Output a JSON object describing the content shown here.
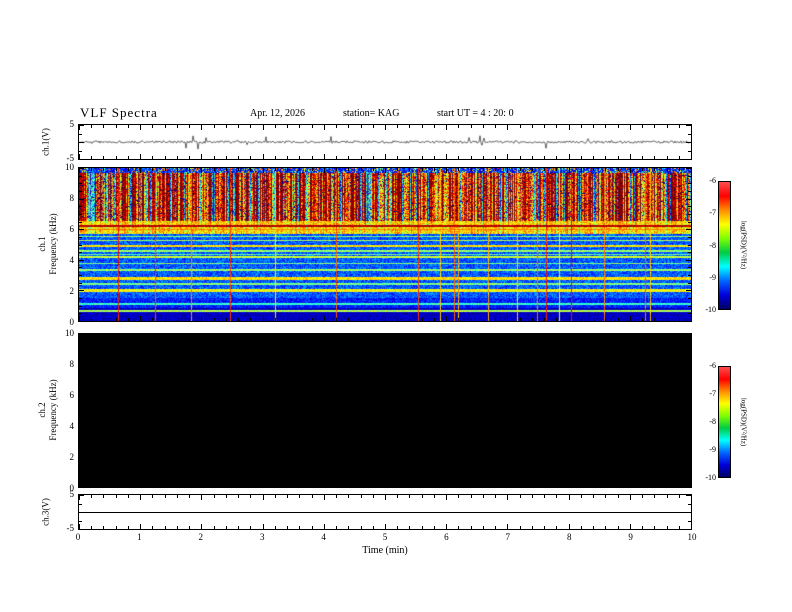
{
  "header": {
    "title": "VLF Spectra",
    "date": "Apr. 12, 2026",
    "station": "station= KAG",
    "start_ut": "start UT =  4 : 20: 0"
  },
  "axes": {
    "time_label": "Time (min)",
    "time_ticks": [
      "0",
      "1",
      "2",
      "3",
      "4",
      "5",
      "6",
      "7",
      "8",
      "9",
      "10"
    ],
    "freq_ticks": [
      "10",
      "8",
      "6",
      "4",
      "2",
      "0"
    ],
    "volt_top": "5",
    "volt_bottom": "-5"
  },
  "panels": {
    "ch1_wave_label": "ch.1(V)",
    "ch1_spec_ch": "ch.1",
    "ch1_spec_freq": "Frequency (kHz)",
    "ch2_spec_ch": "ch.2",
    "ch2_spec_freq": "Frequency (kHz)",
    "ch3_wave_label": "ch.3(V)"
  },
  "colorbar": {
    "label": "log(PSD)(V²/Hz)",
    "ticks": [
      "-6",
      "-7",
      "-8",
      "-9",
      "-10"
    ],
    "gradient": [
      "#ff4d4d",
      "#ff0000",
      "#ff8c00",
      "#ffff00",
      "#7fff00",
      "#00cc44",
      "#00ffff",
      "#0066ff",
      "#0000dd",
      "#000066"
    ]
  },
  "chart_data": [
    {
      "type": "line",
      "panel": "ch.1(V)",
      "xlabel": "Time (min)",
      "xlim": [
        0,
        10
      ],
      "ylim": [
        -5,
        5
      ],
      "description": "Noisy waveform fluctuating tightly around 0 V with small irregular spikes of roughly ±1 V throughout the 10-minute record."
    },
    {
      "type": "heatmap",
      "panel": "ch.1 spectrogram",
      "xlabel": "Time (min)",
      "ylabel": "Frequency (kHz)",
      "xlim": [
        0,
        10
      ],
      "ylim": [
        0,
        10
      ],
      "zlabel": "log(PSD)(V²/Hz)",
      "zlim": [
        -10,
        -6
      ],
      "features": [
        "Intense broadband impulsive activity from ~6.6 to 10 kHz shown as dense vertical red/yellow/green striations lasting the full 10 minutes, with dark speckled dropouts near 10 kHz",
        "Continuous bright red line near 6.2 kHz inside a yellow-green band spanning ~5.8-6.6 kHz",
        "Several thin horizontal green/yellow lines between 3 and 5.6 kHz over a blue background",
        "Green bands near 2.0 and 2.8 kHz over a blue background between 1.5 and 3 kHz",
        "Dark navy background below ~1 kHz with a thin green line near 0.7 kHz",
        "Roughly twenty thin vertical green/yellow lines spanning 0-10 kHz at scattered times"
      ]
    },
    {
      "type": "heatmap",
      "panel": "ch.2 spectrogram",
      "xlabel": "Time (min)",
      "ylabel": "Frequency (kHz)",
      "xlim": [
        0,
        10
      ],
      "ylim": [
        0,
        10
      ],
      "zlabel": "log(PSD)(V²/Hz)",
      "zlim": [
        -10,
        -6
      ],
      "features": [
        "No data - entire panel uniformly black for the full 10 minutes and 0-10 kHz range"
      ]
    },
    {
      "type": "line",
      "panel": "ch.3(V)",
      "xlabel": "Time (min)",
      "xlim": [
        0,
        10
      ],
      "ylim": [
        -5,
        5
      ],
      "description": "Perfectly flat line at 0 V for the whole record."
    }
  ]
}
